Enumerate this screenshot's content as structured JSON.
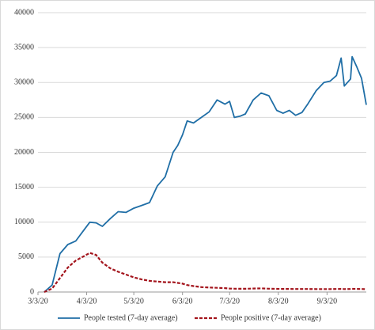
{
  "chart_data": {
    "type": "line",
    "x": [
      "3/7/20",
      "3/12/20",
      "3/17/20",
      "3/22/20",
      "3/27/20",
      "4/1/20",
      "4/5/20",
      "4/9/20",
      "4/13/20",
      "4/18/20",
      "4/23/20",
      "4/28/20",
      "5/3/20",
      "5/8/20",
      "5/13/20",
      "5/18/20",
      "5/23/20",
      "5/28/20",
      "5/31/20",
      "6/3/20",
      "6/6/20",
      "6/10/20",
      "6/15/20",
      "6/20/20",
      "6/25/20",
      "6/30/20",
      "7/3/20",
      "7/6/20",
      "7/10/20",
      "7/13/20",
      "7/18/20",
      "7/23/20",
      "7/28/20",
      "8/2/20",
      "8/6/20",
      "8/10/20",
      "8/14/20",
      "8/18/20",
      "8/22/20",
      "8/27/20",
      "9/1/20",
      "9/5/20",
      "9/9/20",
      "9/12/20",
      "9/14/20",
      "9/18/20",
      "9/19/20",
      "9/22/20",
      "9/25/20",
      "9/28/20"
    ],
    "series": [
      {
        "name": "People tested (7-day average)",
        "color": "#1f6ea6",
        "dashed": false,
        "values": [
          0,
          1000,
          5500,
          6800,
          7300,
          8800,
          10000,
          9900,
          9400,
          10500,
          11500,
          11400,
          12000,
          12400,
          12800,
          15200,
          16500,
          20000,
          21000,
          22500,
          24500,
          24200,
          25000,
          25800,
          27500,
          26900,
          27300,
          25000,
          25200,
          25500,
          27500,
          28500,
          28100,
          26000,
          25600,
          26000,
          25300,
          25700,
          27000,
          28800,
          30000,
          30200,
          31000,
          33500,
          29500,
          30500,
          33700,
          32200,
          30600,
          26800
        ]
      },
      {
        "name": "People positive (7-day average)",
        "color": "#a3141c",
        "dashed": true,
        "values": [
          0,
          500,
          2000,
          3500,
          4500,
          5100,
          5600,
          5300,
          4200,
          3400,
          2900,
          2500,
          2100,
          1800,
          1600,
          1500,
          1400,
          1400,
          1300,
          1200,
          1000,
          850,
          700,
          650,
          600,
          550,
          500,
          480,
          470,
          460,
          500,
          520,
          480,
          450,
          440,
          440,
          430,
          430,
          430,
          420,
          420,
          420,
          430,
          440,
          420,
          430,
          450,
          440,
          430,
          400
        ]
      }
    ],
    "xlim": [
      "3/3/20",
      "9/28/20"
    ],
    "xticks": [
      "3/3/20",
      "4/3/20",
      "5/3/20",
      "6/3/20",
      "7/3/20",
      "8/3/20",
      "9/3/20"
    ],
    "ylim": [
      0,
      40000
    ],
    "yticks": [
      0,
      5000,
      10000,
      15000,
      20000,
      25000,
      30000,
      35000,
      40000
    ],
    "grid": true,
    "legend": "bottom"
  }
}
